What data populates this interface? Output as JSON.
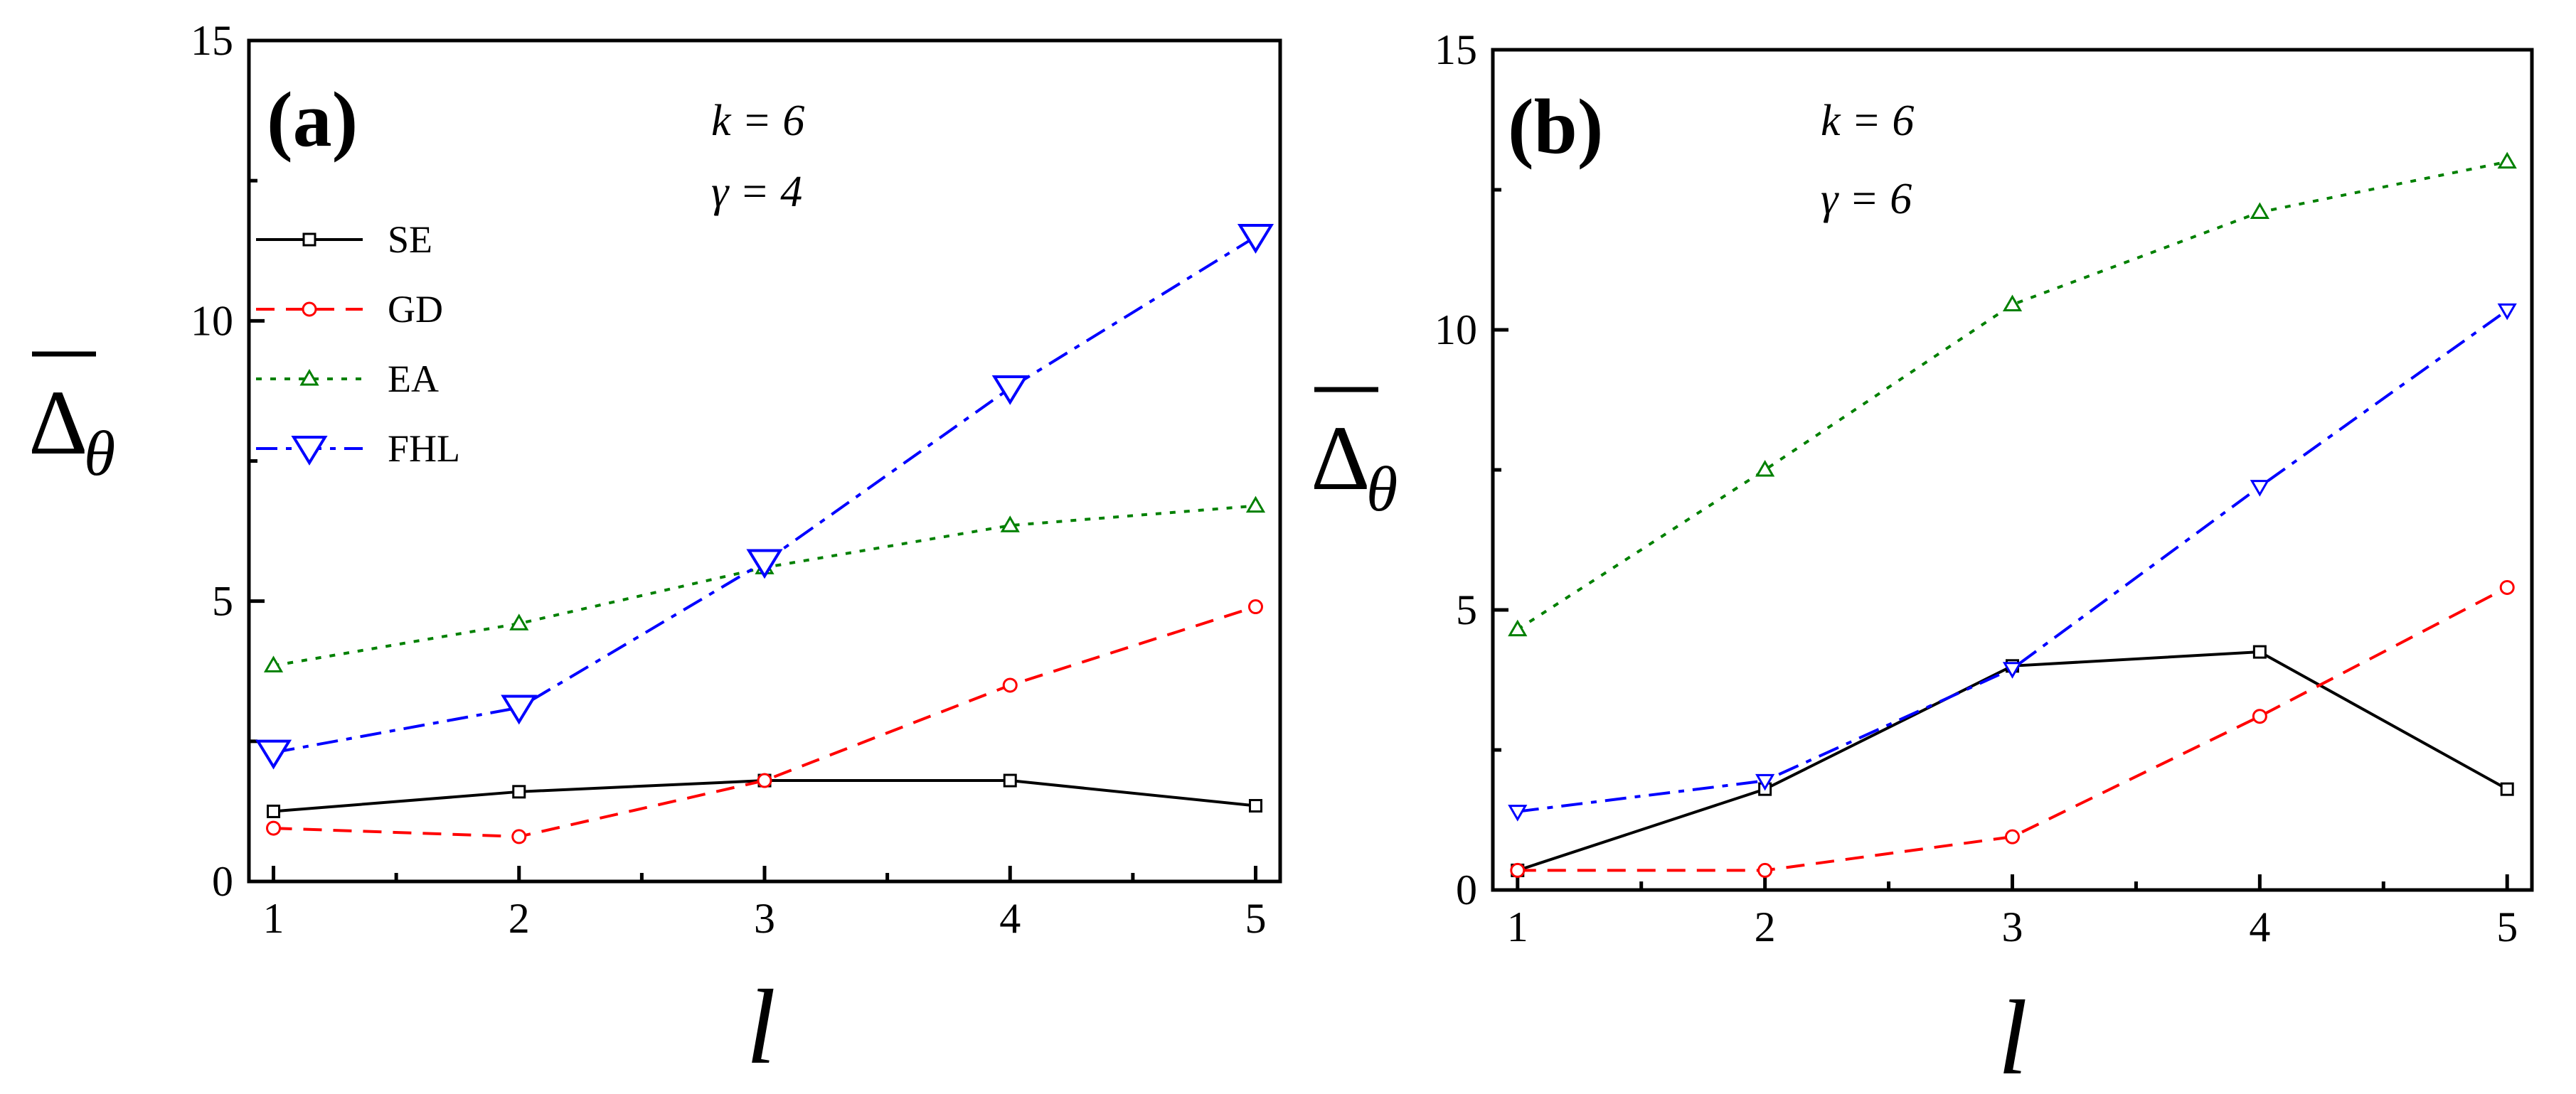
{
  "chart_data": [
    {
      "type": "line",
      "panel_label": "(a)",
      "annotations": [
        "k = 6",
        "γ = 4"
      ],
      "xlabel": "l",
      "ylabel": "Δθ",
      "x": [
        1,
        2,
        3,
        4,
        5
      ],
      "xlim": [
        0.9,
        5.1
      ],
      "ylim": [
        0,
        15
      ],
      "xticks": [
        1,
        2,
        3,
        4,
        5
      ],
      "yticks": [
        0,
        5,
        10,
        15
      ],
      "legend": "upper-left",
      "series": [
        {
          "name": "SE",
          "color": "#000000",
          "marker": "square",
          "dash": "solid",
          "values": [
            1.25,
            1.6,
            1.8,
            1.8,
            1.35
          ]
        },
        {
          "name": "GD",
          "color": "#ff0000",
          "marker": "circle",
          "dash": "dashed",
          "values": [
            0.95,
            0.8,
            1.8,
            3.5,
            4.9
          ]
        },
        {
          "name": "EA",
          "color": "#008000",
          "marker": "triangle-up",
          "dash": "dotted",
          "values": [
            3.85,
            4.6,
            5.6,
            6.35,
            6.7
          ]
        },
        {
          "name": "FHL",
          "color": "#0000ff",
          "marker": "triangle-down-large",
          "dash": "dashdot",
          "values": [
            2.3,
            3.1,
            5.7,
            8.8,
            11.5
          ]
        }
      ]
    },
    {
      "type": "line",
      "panel_label": "(b)",
      "annotations": [
        "k = 6",
        "γ = 6"
      ],
      "xlabel": "l",
      "ylabel": "Δθ",
      "x": [
        1,
        2,
        3,
        4,
        5
      ],
      "xlim": [
        0.9,
        5.1
      ],
      "ylim": [
        0,
        15
      ],
      "xticks": [
        1,
        2,
        3,
        4,
        5
      ],
      "yticks": [
        0,
        5,
        10,
        15
      ],
      "series": [
        {
          "name": "SE",
          "color": "#000000",
          "marker": "square",
          "dash": "solid",
          "values": [
            0.35,
            1.8,
            4.0,
            4.25,
            1.8
          ]
        },
        {
          "name": "GD",
          "color": "#ff0000",
          "marker": "circle",
          "dash": "dashed",
          "values": [
            0.35,
            0.35,
            0.95,
            3.1,
            5.4
          ]
        },
        {
          "name": "EA",
          "color": "#008000",
          "marker": "triangle-up",
          "dash": "dotted",
          "values": [
            4.65,
            7.5,
            10.45,
            12.1,
            13.0
          ]
        },
        {
          "name": "FHL",
          "color": "#0000ff",
          "marker": "triangle-down",
          "dash": "dashdot",
          "values": [
            1.4,
            1.95,
            3.95,
            7.2,
            10.35
          ]
        }
      ]
    }
  ]
}
